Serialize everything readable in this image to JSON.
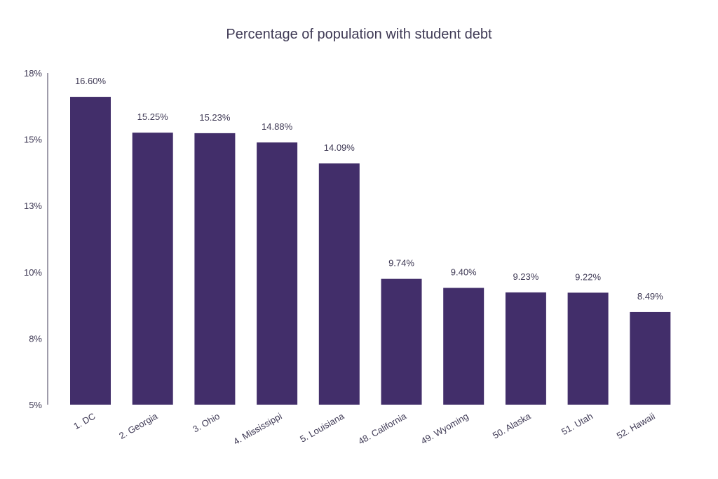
{
  "chart_data": {
    "type": "bar",
    "title": "Percentage of population with student debt",
    "xlabel": "",
    "ylabel": "",
    "categories": [
      "1. DC",
      "2. Georgia",
      "3. Ohio",
      "4. Mississippi",
      "5. Louisiana",
      "48. California",
      "49. Wyoming",
      "50. Alaska",
      "51. Utah",
      "52. Hawaii"
    ],
    "values": [
      16.6,
      15.25,
      15.23,
      14.88,
      14.09,
      9.74,
      9.4,
      9.23,
      9.22,
      8.49
    ],
    "data_labels": [
      "16.60%",
      "15.25%",
      "15.23%",
      "14.88%",
      "14.09%",
      "9.74%",
      "9.40%",
      "9.23%",
      "9.22%",
      "8.49%"
    ],
    "y_ticks": [
      "18%",
      "15%",
      "13%",
      "10%",
      "8%",
      "5%"
    ],
    "y_tick_values": [
      17.5,
      15,
      12.5,
      10,
      7.5,
      5
    ],
    "ylim": [
      5,
      17.5
    ],
    "grid": false,
    "legend": "none",
    "bar_color": "#422e6a"
  }
}
